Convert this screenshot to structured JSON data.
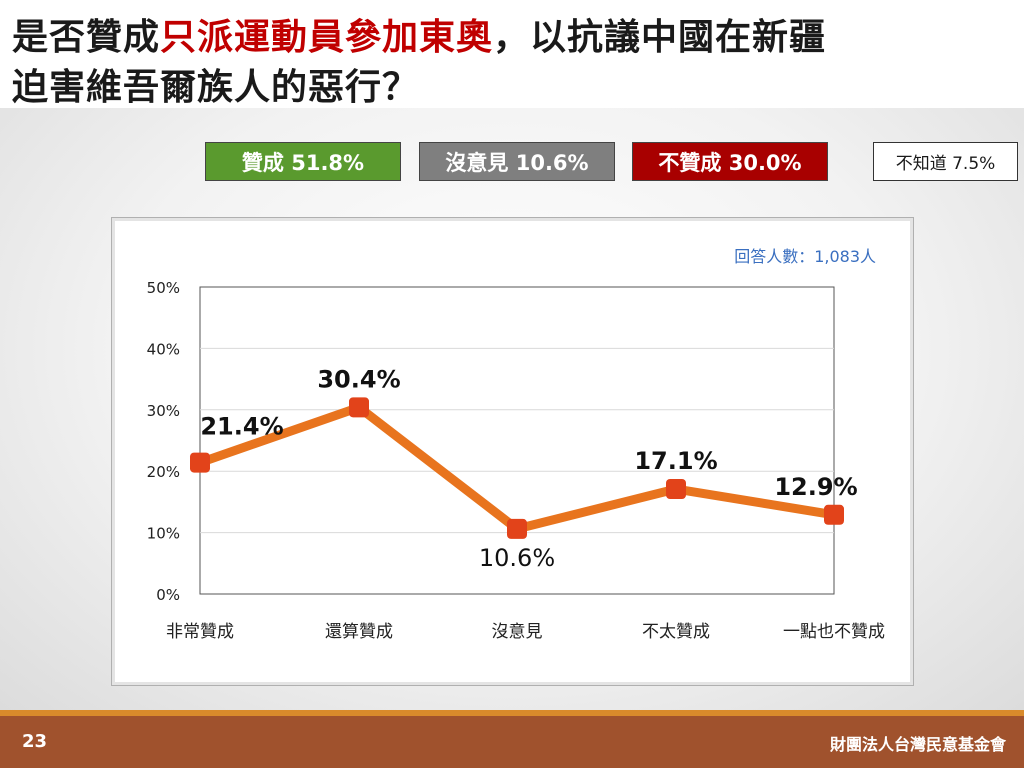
{
  "title": {
    "part1": "是否贊成",
    "highlight": "只派運動員參加東奧",
    "part2": "，以抗議中國在新疆",
    "line2": "迫害維吾爾族人的惡行？"
  },
  "summary": [
    {
      "label": "贊成 51.8%",
      "color": "#5a9a2e"
    },
    {
      "label": "沒意見 10.6%",
      "color": "#7f7f7f"
    },
    {
      "label": "不贊成 30.0%",
      "color": "#a80000"
    },
    {
      "label": "不知道 7.5%",
      "color": "#ffffff"
    }
  ],
  "respondents": "回答人數：1,083人",
  "chart_data": {
    "type": "line",
    "categories": [
      "非常贊成",
      "還算贊成",
      "沒意見",
      "不太贊成",
      "一點也不贊成"
    ],
    "values": [
      21.4,
      30.4,
      10.6,
      17.1,
      12.9
    ],
    "data_labels": [
      "21.4%",
      "30.4%",
      "10.6%",
      "17.1%",
      "12.9%"
    ],
    "y_ticks": [
      "0%",
      "10%",
      "20%",
      "30%",
      "40%",
      "50%"
    ],
    "ylim": [
      0,
      50
    ],
    "grid": true,
    "line_color": "#e8741e",
    "marker_color": "#e2431a"
  },
  "footer": {
    "page": "23",
    "org": "財團法人台灣民意基金會"
  }
}
